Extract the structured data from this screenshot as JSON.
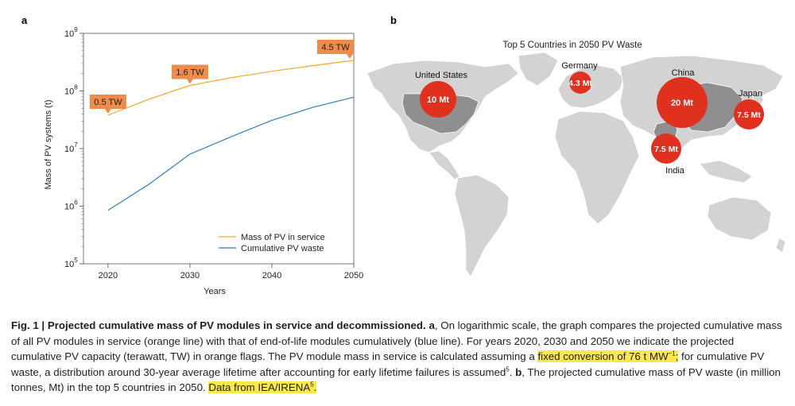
{
  "panel_a": {
    "label": "a",
    "chart_data": {
      "type": "line",
      "title": "",
      "xlabel": "Years",
      "ylabel": "Mass of PV systems (t)",
      "yscale": "log",
      "xlim": [
        2017,
        2050
      ],
      "ylim": [
        100000,
        1000000000
      ],
      "x_ticks": [
        "2020",
        "2030",
        "2040",
        "2050"
      ],
      "y_ticks": [
        {
          "base": "10",
          "exp": "5"
        },
        {
          "base": "10",
          "exp": "6"
        },
        {
          "base": "10",
          "exp": "7"
        },
        {
          "base": "10",
          "exp": "8"
        },
        {
          "base": "10",
          "exp": "9"
        }
      ],
      "legend_position": "bottom-right",
      "series": [
        {
          "name": "Mass of PV in service",
          "color": "#f5a623",
          "x": [
            2020,
            2025,
            2030,
            2035,
            2040,
            2045,
            2050
          ],
          "y": [
            38000000,
            72000000,
            125000000,
            170000000,
            220000000,
            275000000,
            340000000
          ]
        },
        {
          "name": "Cumulative PV waste",
          "color": "#2f7fc1",
          "x": [
            2020,
            2025,
            2030,
            2035,
            2040,
            2045,
            2050
          ],
          "y": [
            850000,
            2400000,
            8000000,
            16000000,
            31000000,
            52000000,
            78000000
          ]
        }
      ],
      "annotations": [
        {
          "text": "0.5 TW",
          "x": 2020,
          "y": 38000000
        },
        {
          "text": "1.6 TW",
          "x": 2030,
          "y": 125000000
        },
        {
          "text": "4.5 TW",
          "x": 2050,
          "y": 340000000
        }
      ],
      "annotation_color": "#f08c4a"
    }
  },
  "panel_b": {
    "label": "b",
    "title": "Top 5 Countries in 2050 PV Waste",
    "bubble_color": "#e0301e",
    "countries": [
      {
        "name": "United States",
        "value": "10 Mt"
      },
      {
        "name": "Germany",
        "value": "4.3 Mt"
      },
      {
        "name": "China",
        "value": "20 Mt"
      },
      {
        "name": "Japan",
        "value": "7.5 Mt"
      },
      {
        "name": "India",
        "value": "7.5 Mt"
      }
    ]
  },
  "caption": {
    "fig_label": "Fig. 1 | Projected cumulative mass of PV modules in service and decommissioned.",
    "a_label": "a",
    "part1": ", On logarithmic scale, the graph compares the projected cumulative mass of all PV modules in service (orange line) with that of end-of-life modules cumulatively (blue line). For years 2020, 2030 and 2050 we indicate the projected cumulative PV capacity (terawatt, TW) in orange flags. The PV module mass in service is calculated assuming a",
    "hl1": "fixed conversion of 76 t MW",
    "hl1_sup": "−1",
    "hl1_end": ";",
    "part2": " for cumulative PV waste, a distribution around 30-year average lifetime after accounting for early lifetime failures is assumed",
    "ref1": "5",
    "part3": ". ",
    "b_label": "b",
    "part4": ", The projected cumulative mass of PV waste (in million tonnes, Mt) in the top 5 countries in 2050. ",
    "hl2": "Data from IEA/IRENA",
    "ref2": "5",
    "hl2_end": "."
  }
}
